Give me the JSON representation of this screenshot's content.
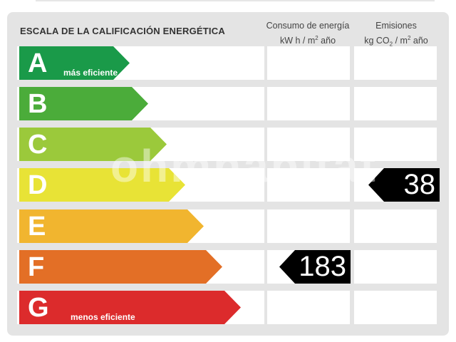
{
  "header": {
    "title": "ESCALA DE LA CALIFICACIÓN ENERGÉTICA",
    "consumo": {
      "line1": "Consumo de energía",
      "line2_pre": "kW h  / m",
      "line2_sup": "2",
      "line2_post": " año"
    },
    "emisiones": {
      "line1": "Emisiones",
      "line2_pre": "kg CO",
      "line2_sub": "2",
      "line2_mid": "  / m",
      "line2_sup": "2",
      "line2_post": " año"
    }
  },
  "scale": [
    {
      "letter": "A",
      "label": "más eficiente",
      "color": "#1a9a49"
    },
    {
      "letter": "B",
      "label": "",
      "color": "#4bac3a"
    },
    {
      "letter": "C",
      "label": "",
      "color": "#9bc93b"
    },
    {
      "letter": "D",
      "label": "",
      "color": "#e8e336"
    },
    {
      "letter": "E",
      "label": "",
      "color": "#f1b52f"
    },
    {
      "letter": "F",
      "label": "",
      "color": "#e36f26"
    },
    {
      "letter": "G",
      "label": "menos eficiente",
      "color": "#dc2b2c"
    }
  ],
  "rating": {
    "consumo": {
      "value": "183",
      "class": "F"
    },
    "emisiones": {
      "value": "38",
      "class": "D"
    }
  },
  "watermark": "ohmhabitat"
}
